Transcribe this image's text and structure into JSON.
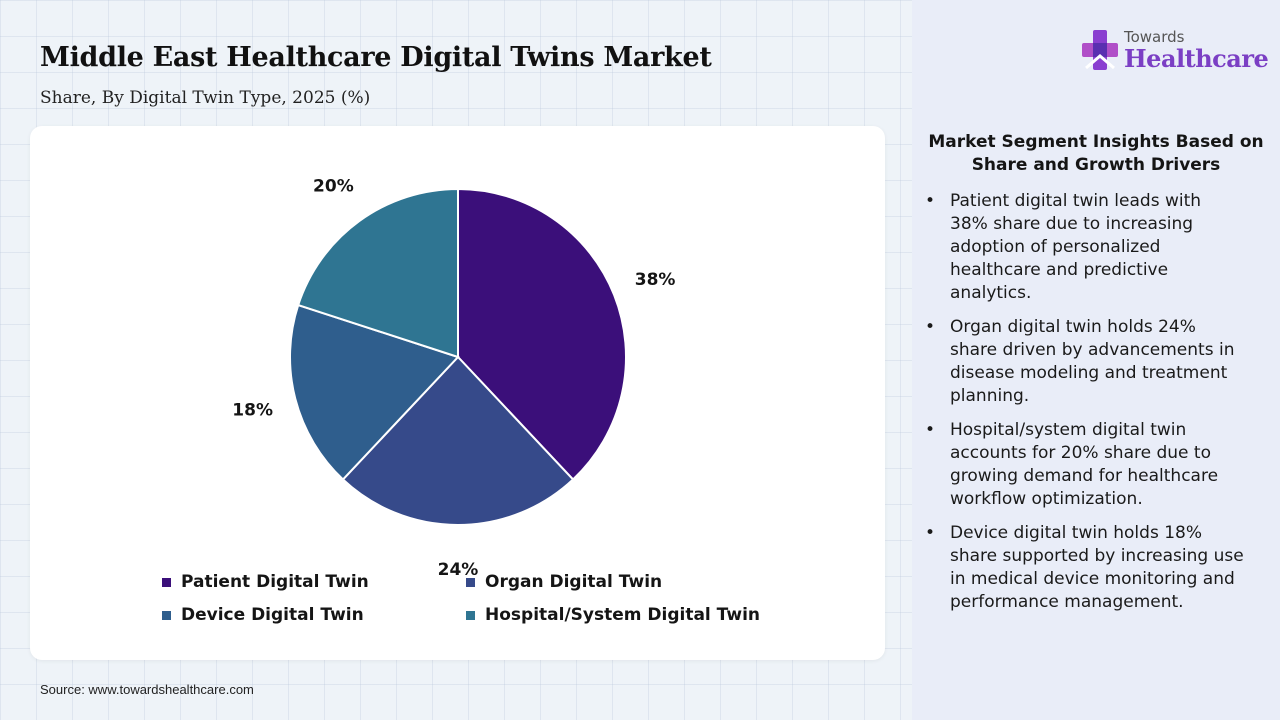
{
  "header": {
    "title": "Middle East Healthcare Digital Twins Market",
    "subtitle": "Share, By Digital Twin Type, 2025 (%)"
  },
  "brand": {
    "logo_top": "Towards",
    "logo_main": "Healthcare",
    "logo_icon": "medical-cross-icon"
  },
  "chart_data": {
    "type": "pie",
    "title": "Middle East Healthcare Digital Twins Market",
    "subtitle": "Share, By Digital Twin Type, 2025 (%)",
    "categories": [
      "Patient Digital Twin",
      "Organ Digital Twin",
      "Device Digital Twin",
      "Hospital/System Digital Twin"
    ],
    "values": [
      38,
      24,
      18,
      20
    ],
    "labels": [
      "38%",
      "24%",
      "18%",
      "20%"
    ],
    "colors": [
      "#3b0f7a",
      "#364a8a",
      "#2f5e8d",
      "#2f7592"
    ],
    "legend": "bottom",
    "start": "top, clockwise"
  },
  "insights": {
    "title": "Market Segment Insights Based on Share and Growth Drivers",
    "items": [
      "Patient digital twin leads with 38% share due to increasing adoption of personalized healthcare and predictive analytics.",
      "Organ digital twin holds 24% share driven by advancements in disease modeling and treatment planning.",
      "Hospital/system digital twin accounts for 20% share due to growing demand for healthcare workflow optimization.",
      "Device digital twin holds 18% share supported by increasing use in medical device monitoring and performance management."
    ]
  },
  "footer": {
    "source": "Source: www.towardshealthcare.com"
  }
}
